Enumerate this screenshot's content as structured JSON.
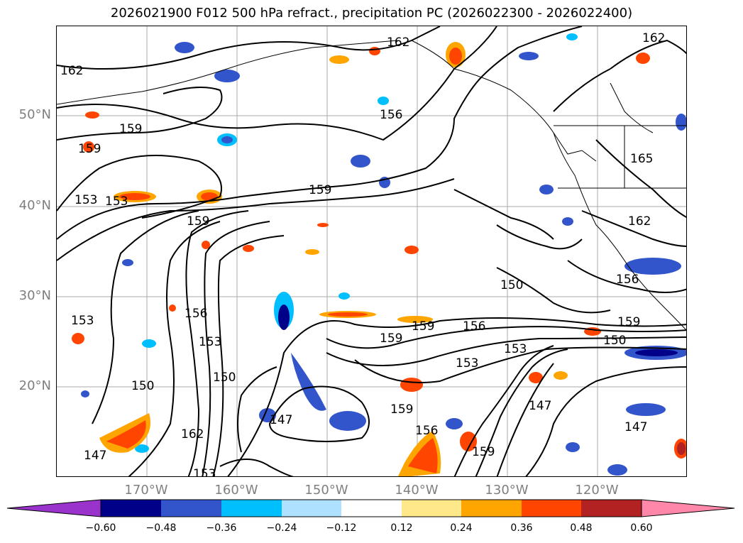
{
  "title": "2026021900 F012 500 hPa refract., precipitation PC (2026022300 - 2026022400)",
  "lat_labels": [
    "50°N",
    "40°N",
    "30°N",
    "20°N"
  ],
  "lon_labels": [
    "170°W",
    "160°W",
    "150°W",
    "140°W",
    "130°W",
    "120°W"
  ],
  "contour_labels": [
    "162",
    "162",
    "162",
    "156",
    "159",
    "159",
    "159",
    "153",
    "153",
    "159",
    "165",
    "162",
    "156",
    "150",
    "153",
    "156",
    "159",
    "150",
    "159",
    "153",
    "153",
    "150",
    "156",
    "153",
    "150",
    "147",
    "147",
    "159",
    "156",
    "159",
    "162",
    "153",
    "147",
    "147",
    "159"
  ],
  "colorbar": {
    "ticks": [
      "−0.60",
      "−0.48",
      "−0.36",
      "−0.24",
      "−0.12",
      "0.12",
      "0.24",
      "0.36",
      "0.48",
      "0.60"
    ],
    "colors": [
      "#9933cc",
      "#000088",
      "#3355cc",
      "#00bfff",
      "#aee0ff",
      "#ffffff",
      "#ffe88a",
      "#ffa500",
      "#ff4500",
      "#b22222",
      "#ff88aa"
    ]
  },
  "colors": {
    "neg_light": "#aee0ff",
    "neg_mid": "#00bfff",
    "neg_strong": "#3355cc",
    "neg_max": "#000088",
    "pos_light": "#ffe88a",
    "pos_mid": "#ffa500",
    "pos_strong": "#ff4500",
    "pos_max": "#b22222",
    "contour": "#000000",
    "grid": "#aaaaaa",
    "lat_lon_label": "#7f7f7f"
  }
}
